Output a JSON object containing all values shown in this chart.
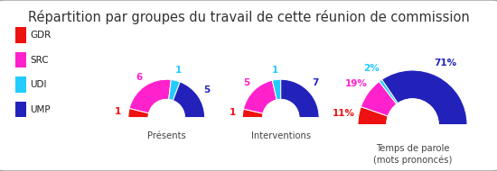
{
  "title": "Répartition par groupes du travail de cette réunion de commission",
  "title_fontsize": 10.5,
  "background_color": "#e0e0e0",
  "legend_items": [
    "GDR",
    "SRC",
    "UDI",
    "UMP"
  ],
  "colors": {
    "GDR": "#ee1111",
    "SRC": "#ff22cc",
    "UDI": "#22ccff",
    "UMP": "#2222bb"
  },
  "charts": [
    {
      "label": "Présents",
      "values": {
        "GDR": 1,
        "SRC": 6,
        "UDI": 1,
        "UMP": 5
      },
      "display_values": {
        "GDR": "1",
        "SRC": "6",
        "UDI": "1",
        "UMP": "5"
      }
    },
    {
      "label": "Interventions",
      "values": {
        "GDR": 1,
        "SRC": 5,
        "UDI": 1,
        "UMP": 7
      },
      "display_values": {
        "GDR": "1",
        "SRC": "5",
        "UDI": "1",
        "UMP": "7"
      }
    },
    {
      "label": "Temps de parole\n(mots prononcés)",
      "values": {
        "GDR": 11,
        "SRC": 19,
        "UDI": 2,
        "UMP": 71
      },
      "display_values": {
        "GDR": "11%",
        "SRC": "19%",
        "UDI": "2%",
        "UMP": "71%"
      }
    }
  ]
}
